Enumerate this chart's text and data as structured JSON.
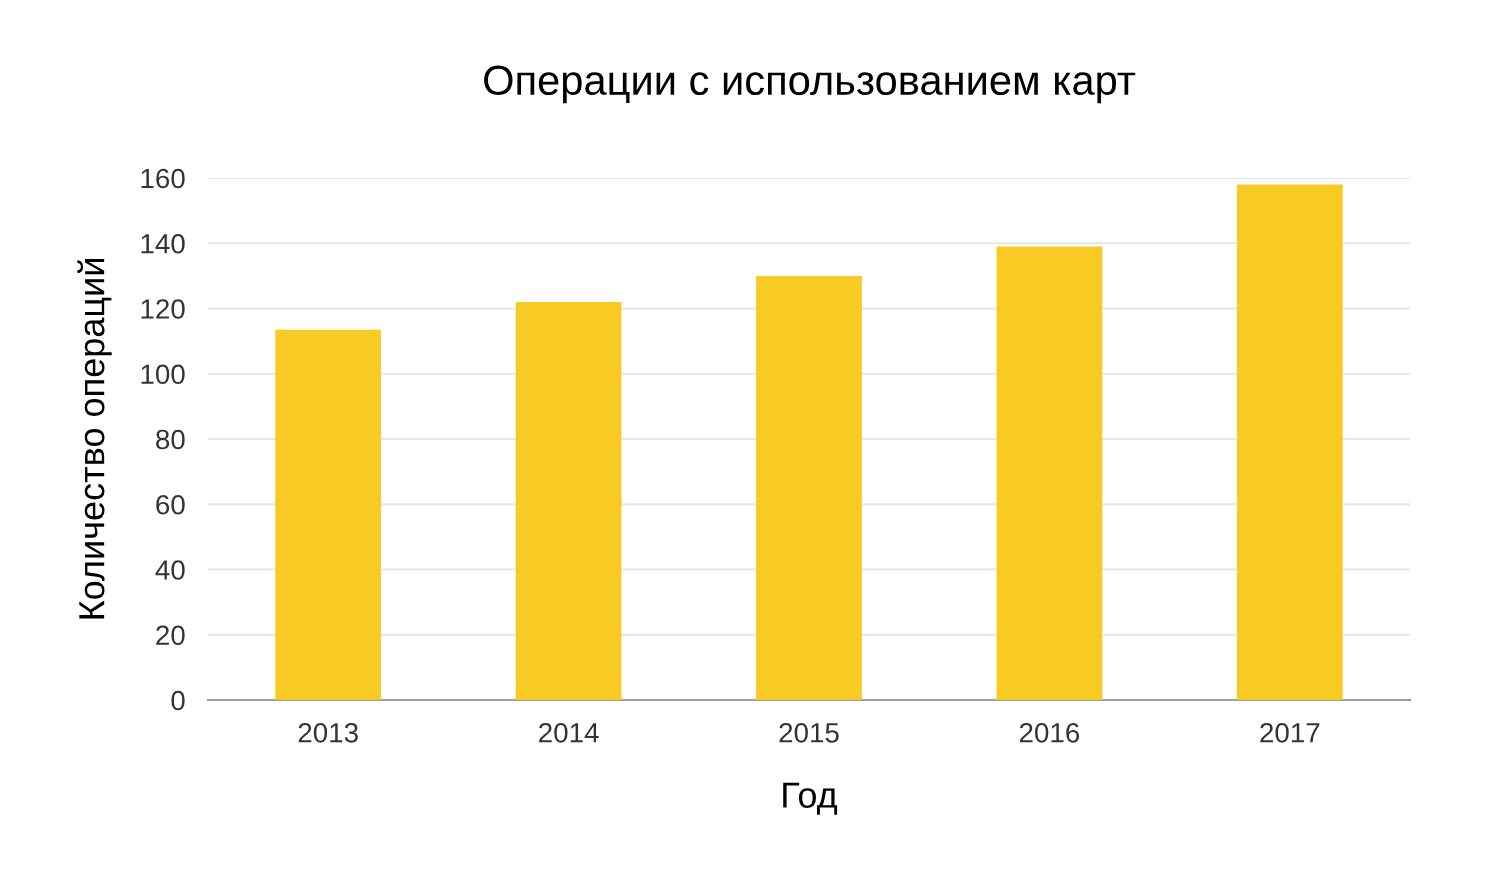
{
  "chart_data": {
    "type": "bar",
    "title": "Операции с использованием карт",
    "xlabel": "Год",
    "ylabel": "Количество операций",
    "categories": [
      "2013",
      "2014",
      "2015",
      "2016",
      "2017"
    ],
    "values": [
      113.5,
      122,
      130,
      139,
      158
    ],
    "color": "#f8ca24",
    "ylim": [
      0,
      160
    ],
    "yticks": [
      0,
      20,
      40,
      60,
      80,
      100,
      120,
      140,
      160
    ],
    "grid": "y"
  }
}
